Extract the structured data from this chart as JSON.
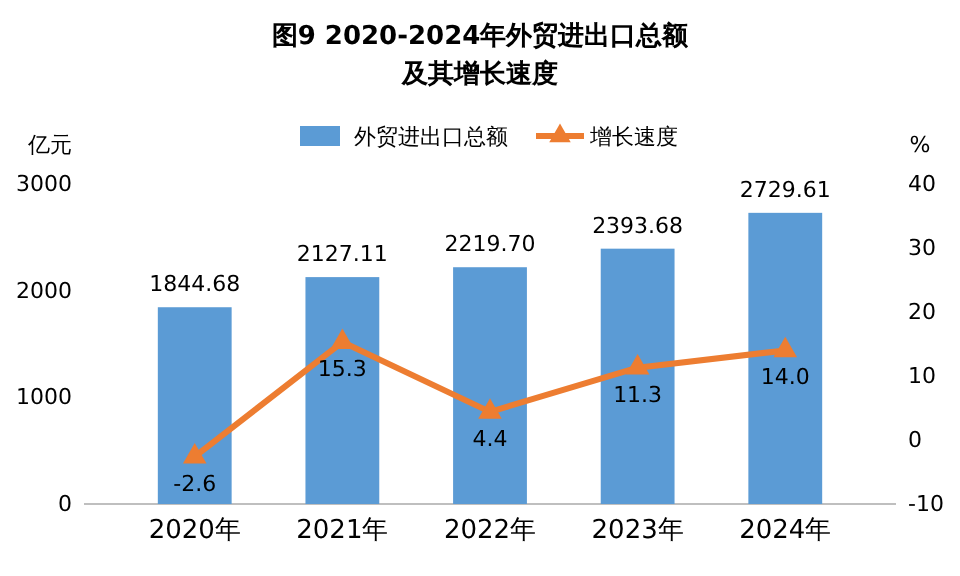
{
  "chart_data": {
    "type": "bar",
    "title": "图9  2020-2024年外贸进出口总额及其增长速度",
    "ylabel": "亿元",
    "y2label": "%",
    "categories": [
      "2020年",
      "2021年",
      "2022年",
      "2023年",
      "2024年"
    ],
    "series": [
      {
        "name": "外贸进出口总额",
        "color": "#5b9bd5",
        "values": [
          1844.68,
          2127.11,
          2219.7,
          2393.68,
          2729.61
        ],
        "value_labels": [
          "1844.68",
          "2127.11",
          "2219.70",
          "2393.68",
          "2729.61"
        ]
      },
      {
        "name": "增长速度",
        "type": "line",
        "axis": "y2",
        "color": "#ed7d31",
        "marker": "triangle",
        "values": [
          -2.6,
          15.3,
          4.4,
          11.3,
          14.0
        ],
        "value_labels": [
          "-2.6",
          "15.3",
          "4.4",
          "11.3",
          "14.0"
        ]
      }
    ],
    "ylim": [
      0,
      3000
    ],
    "yticks": [
      0,
      1000,
      2000,
      3000
    ],
    "y2lim": [
      -10,
      40
    ],
    "y2ticks": [
      -10,
      0,
      10,
      20,
      30,
      40
    ],
    "legend": "top",
    "grid": false
  }
}
